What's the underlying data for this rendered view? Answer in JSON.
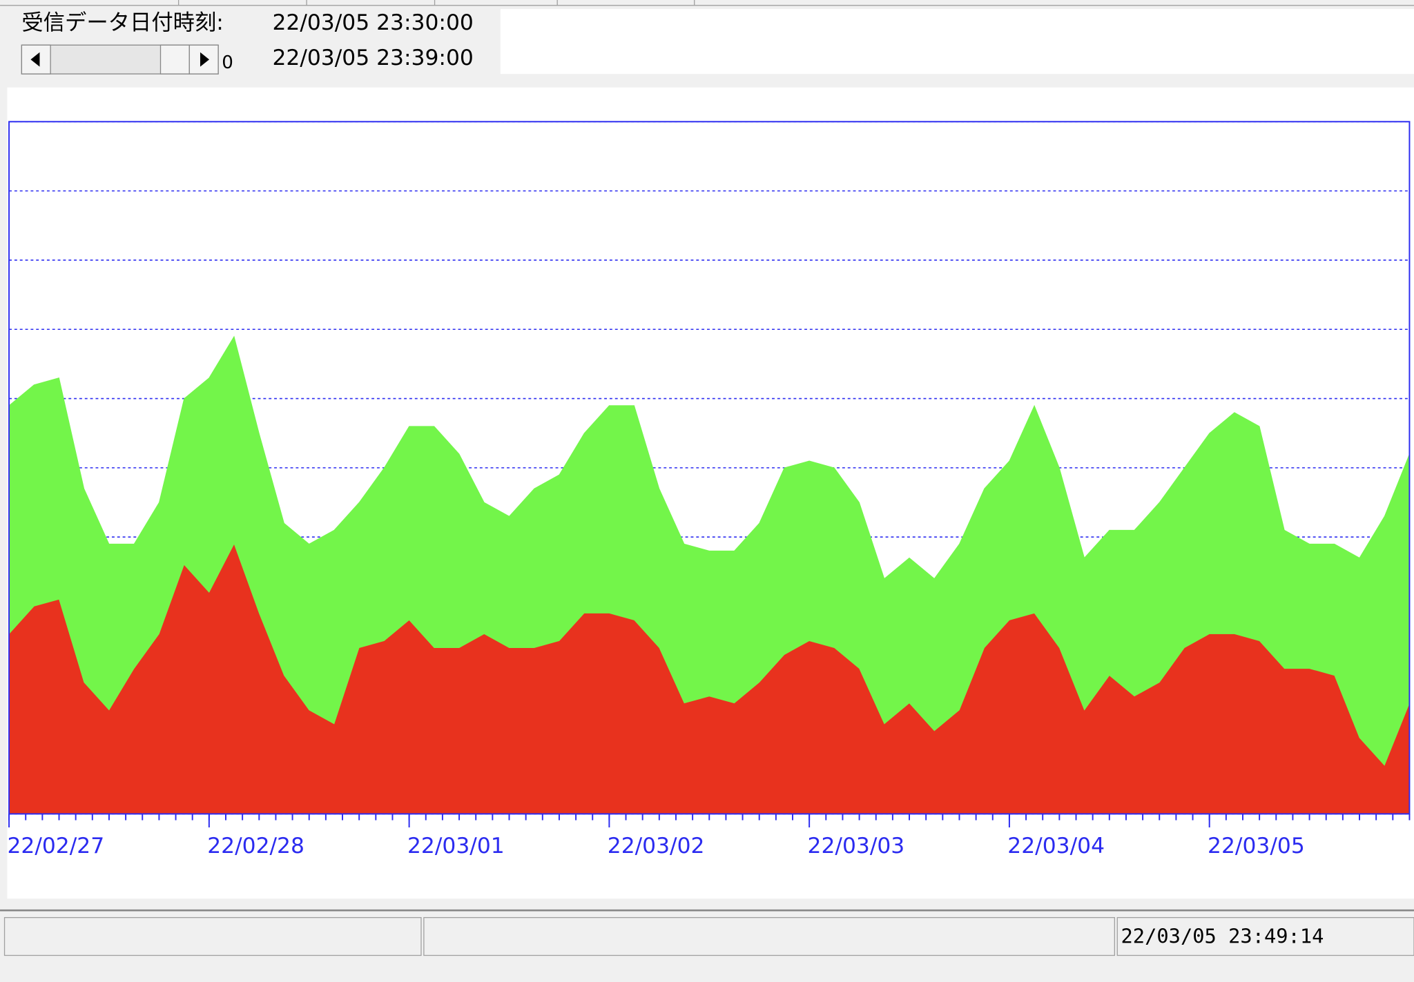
{
  "header": {
    "label": "受信データ日付時刻:",
    "time_from": "22/03/05 23:30:00",
    "time_to": "22/03/05 23:39:00",
    "scroll_value": "0"
  },
  "status_bar": {
    "timestamp": "22/03/05 23:49:14"
  },
  "chart_data": {
    "type": "area",
    "stacked": true,
    "x": [
      0,
      3,
      6,
      9,
      12,
      15,
      18,
      21,
      24,
      27,
      30,
      33,
      36,
      39,
      42,
      45,
      48,
      51,
      54,
      57,
      60,
      63,
      66,
      69,
      72,
      75,
      78,
      81,
      84,
      87,
      90,
      93,
      96,
      99,
      102,
      105,
      108,
      111,
      114,
      117,
      120,
      123,
      126,
      129,
      132,
      135,
      138,
      141,
      144,
      147,
      150,
      153,
      156,
      159,
      162,
      165,
      168
    ],
    "series": [
      {
        "color": "#e8321e",
        "values": [
          26,
          30,
          31,
          19,
          15,
          21,
          26,
          36,
          32,
          39,
          29,
          20,
          15,
          13,
          24,
          25,
          28,
          24,
          24,
          26,
          24,
          24,
          25,
          29,
          29,
          28,
          24,
          16,
          17,
          16,
          19,
          23,
          25,
          24,
          21,
          13,
          16,
          12,
          15,
          24,
          28,
          29,
          24,
          15,
          20,
          17,
          19,
          24,
          26,
          26,
          25,
          21,
          21,
          20,
          11,
          7,
          16
        ]
      },
      {
        "color": "#73f54a",
        "values": [
          33,
          32,
          32,
          28,
          24,
          18,
          19,
          24,
          31,
          30,
          26,
          22,
          24,
          28,
          21,
          25,
          28,
          32,
          28,
          19,
          19,
          23,
          24,
          26,
          30,
          31,
          23,
          23,
          21,
          22,
          23,
          27,
          26,
          26,
          24,
          21,
          21,
          22,
          24,
          23,
          23,
          30,
          26,
          22,
          21,
          24,
          26,
          26,
          29,
          32,
          31,
          20,
          18,
          19,
          26,
          36,
          36
        ]
      }
    ],
    "xlim": [
      0,
      168
    ],
    "xticks": [
      {
        "value": 0,
        "label": "22/02/27"
      },
      {
        "value": 24,
        "label": "22/02/28"
      },
      {
        "value": 48,
        "label": "22/03/01"
      },
      {
        "value": 72,
        "label": "22/03/02"
      },
      {
        "value": 96,
        "label": "22/03/03"
      },
      {
        "value": 120,
        "label": "22/03/04"
      },
      {
        "value": 144,
        "label": "22/03/05"
      }
    ],
    "xminorticks": [
      0,
      2,
      4,
      6,
      8,
      10,
      12,
      14,
      16,
      18,
      20,
      22,
      24,
      26,
      28,
      30,
      32,
      34,
      36,
      38,
      40,
      42,
      44,
      46,
      48,
      50,
      52,
      54,
      56,
      58,
      60,
      62,
      64,
      66,
      68,
      70,
      72,
      74,
      76,
      78,
      80,
      82,
      84,
      86,
      88,
      90,
      92,
      94,
      96,
      98,
      100,
      102,
      104,
      106,
      108,
      110,
      112,
      114,
      116,
      118,
      120,
      122,
      124,
      126,
      128,
      130,
      132,
      134,
      136,
      138,
      140,
      142,
      144,
      146,
      148,
      150,
      152,
      154,
      156,
      158,
      160,
      162,
      164,
      166,
      168
    ],
    "ylim": [
      0,
      100
    ],
    "yticks": [
      0,
      10,
      20,
      30,
      40,
      50,
      60,
      70,
      80,
      90,
      100
    ],
    "grid": true
  }
}
